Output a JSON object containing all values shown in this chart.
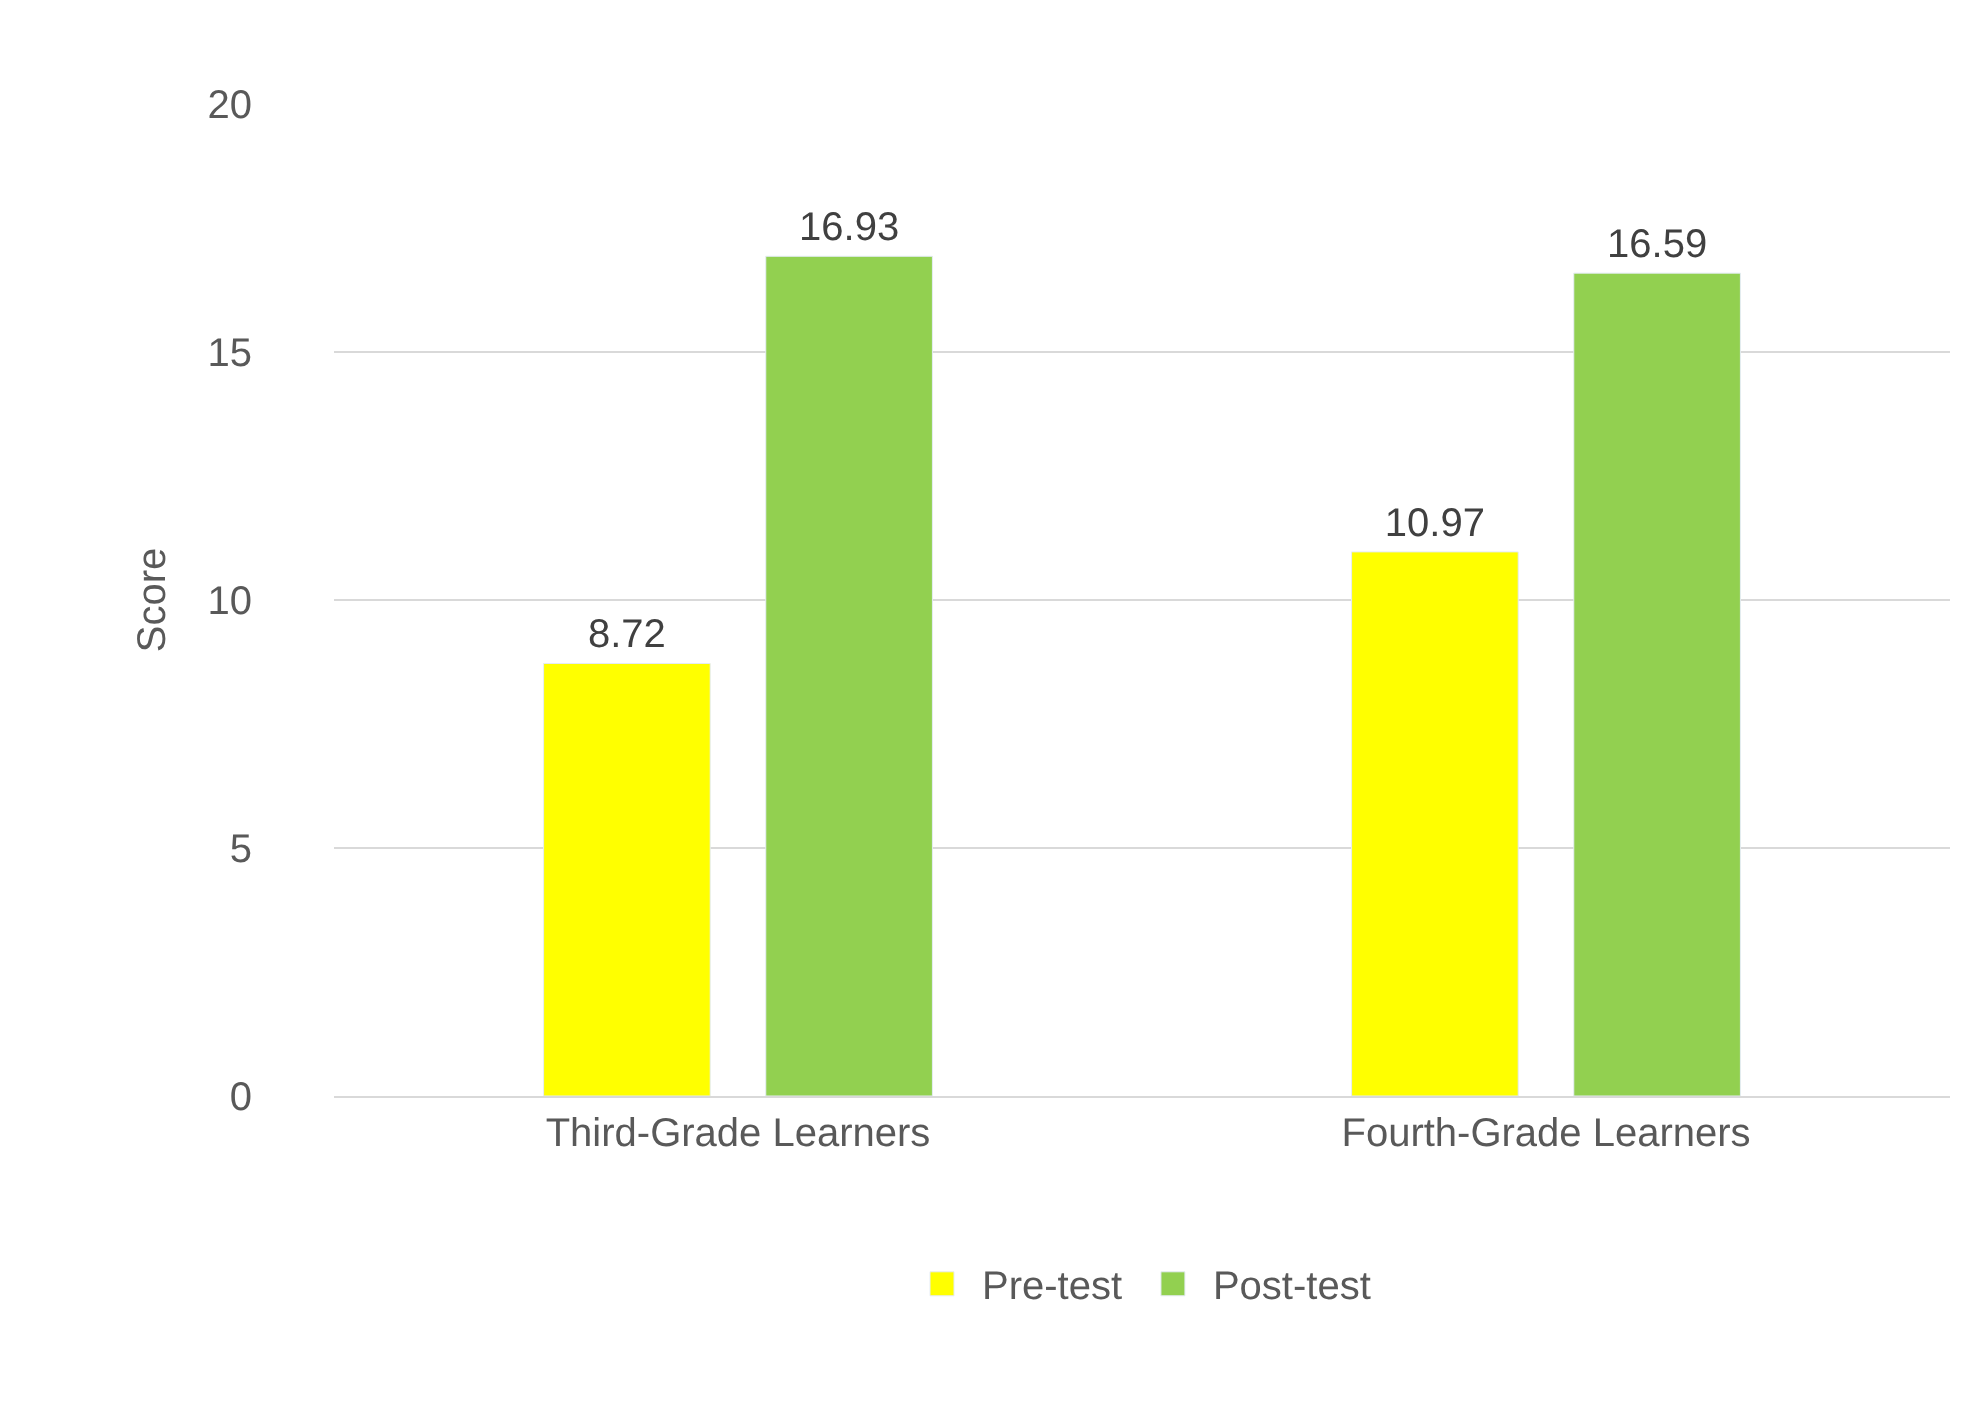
{
  "chart_data": {
    "type": "bar",
    "ylabel": "Score",
    "categories": [
      "Third-Grade Learners",
      "Fourth-Grade Learners"
    ],
    "series": [
      {
        "name": "Pre-test",
        "color": "#ffff00",
        "values": [
          8.72,
          10.97
        ]
      },
      {
        "name": "Post-test",
        "color": "#92d050",
        "values": [
          16.93,
          16.59
        ]
      }
    ],
    "ylim": [
      0,
      20
    ],
    "yticks": [
      0,
      5,
      10,
      15,
      20
    ],
    "grid": "y",
    "legend": "bottom",
    "data_labels": true
  }
}
